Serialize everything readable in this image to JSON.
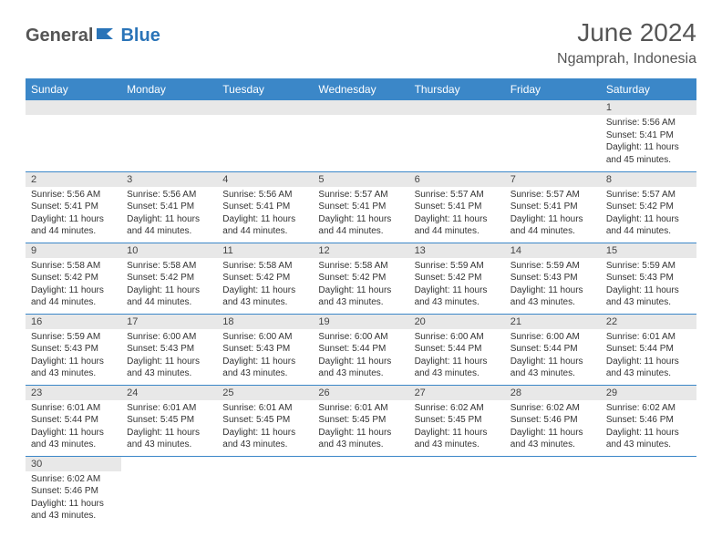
{
  "logo": {
    "part1": "General",
    "part2": "Blue"
  },
  "title": "June 2024",
  "location": "Ngamprah, Indonesia",
  "colors": {
    "header_bg": "#3b87c8",
    "header_text": "#ffffff",
    "daynum_bg": "#e8e8e8",
    "row_divider": "#3b87c8",
    "logo_gray": "#555555",
    "logo_blue": "#2a74b8",
    "text": "#333333"
  },
  "weekdays": [
    "Sunday",
    "Monday",
    "Tuesday",
    "Wednesday",
    "Thursday",
    "Friday",
    "Saturday"
  ],
  "weeks": [
    [
      null,
      null,
      null,
      null,
      null,
      null,
      {
        "n": "1",
        "sr": "Sunrise: 5:56 AM",
        "ss": "Sunset: 5:41 PM",
        "d1": "Daylight: 11 hours",
        "d2": "and 45 minutes."
      }
    ],
    [
      {
        "n": "2",
        "sr": "Sunrise: 5:56 AM",
        "ss": "Sunset: 5:41 PM",
        "d1": "Daylight: 11 hours",
        "d2": "and 44 minutes."
      },
      {
        "n": "3",
        "sr": "Sunrise: 5:56 AM",
        "ss": "Sunset: 5:41 PM",
        "d1": "Daylight: 11 hours",
        "d2": "and 44 minutes."
      },
      {
        "n": "4",
        "sr": "Sunrise: 5:56 AM",
        "ss": "Sunset: 5:41 PM",
        "d1": "Daylight: 11 hours",
        "d2": "and 44 minutes."
      },
      {
        "n": "5",
        "sr": "Sunrise: 5:57 AM",
        "ss": "Sunset: 5:41 PM",
        "d1": "Daylight: 11 hours",
        "d2": "and 44 minutes."
      },
      {
        "n": "6",
        "sr": "Sunrise: 5:57 AM",
        "ss": "Sunset: 5:41 PM",
        "d1": "Daylight: 11 hours",
        "d2": "and 44 minutes."
      },
      {
        "n": "7",
        "sr": "Sunrise: 5:57 AM",
        "ss": "Sunset: 5:41 PM",
        "d1": "Daylight: 11 hours",
        "d2": "and 44 minutes."
      },
      {
        "n": "8",
        "sr": "Sunrise: 5:57 AM",
        "ss": "Sunset: 5:42 PM",
        "d1": "Daylight: 11 hours",
        "d2": "and 44 minutes."
      }
    ],
    [
      {
        "n": "9",
        "sr": "Sunrise: 5:58 AM",
        "ss": "Sunset: 5:42 PM",
        "d1": "Daylight: 11 hours",
        "d2": "and 44 minutes."
      },
      {
        "n": "10",
        "sr": "Sunrise: 5:58 AM",
        "ss": "Sunset: 5:42 PM",
        "d1": "Daylight: 11 hours",
        "d2": "and 44 minutes."
      },
      {
        "n": "11",
        "sr": "Sunrise: 5:58 AM",
        "ss": "Sunset: 5:42 PM",
        "d1": "Daylight: 11 hours",
        "d2": "and 43 minutes."
      },
      {
        "n": "12",
        "sr": "Sunrise: 5:58 AM",
        "ss": "Sunset: 5:42 PM",
        "d1": "Daylight: 11 hours",
        "d2": "and 43 minutes."
      },
      {
        "n": "13",
        "sr": "Sunrise: 5:59 AM",
        "ss": "Sunset: 5:42 PM",
        "d1": "Daylight: 11 hours",
        "d2": "and 43 minutes."
      },
      {
        "n": "14",
        "sr": "Sunrise: 5:59 AM",
        "ss": "Sunset: 5:43 PM",
        "d1": "Daylight: 11 hours",
        "d2": "and 43 minutes."
      },
      {
        "n": "15",
        "sr": "Sunrise: 5:59 AM",
        "ss": "Sunset: 5:43 PM",
        "d1": "Daylight: 11 hours",
        "d2": "and 43 minutes."
      }
    ],
    [
      {
        "n": "16",
        "sr": "Sunrise: 5:59 AM",
        "ss": "Sunset: 5:43 PM",
        "d1": "Daylight: 11 hours",
        "d2": "and 43 minutes."
      },
      {
        "n": "17",
        "sr": "Sunrise: 6:00 AM",
        "ss": "Sunset: 5:43 PM",
        "d1": "Daylight: 11 hours",
        "d2": "and 43 minutes."
      },
      {
        "n": "18",
        "sr": "Sunrise: 6:00 AM",
        "ss": "Sunset: 5:43 PM",
        "d1": "Daylight: 11 hours",
        "d2": "and 43 minutes."
      },
      {
        "n": "19",
        "sr": "Sunrise: 6:00 AM",
        "ss": "Sunset: 5:44 PM",
        "d1": "Daylight: 11 hours",
        "d2": "and 43 minutes."
      },
      {
        "n": "20",
        "sr": "Sunrise: 6:00 AM",
        "ss": "Sunset: 5:44 PM",
        "d1": "Daylight: 11 hours",
        "d2": "and 43 minutes."
      },
      {
        "n": "21",
        "sr": "Sunrise: 6:00 AM",
        "ss": "Sunset: 5:44 PM",
        "d1": "Daylight: 11 hours",
        "d2": "and 43 minutes."
      },
      {
        "n": "22",
        "sr": "Sunrise: 6:01 AM",
        "ss": "Sunset: 5:44 PM",
        "d1": "Daylight: 11 hours",
        "d2": "and 43 minutes."
      }
    ],
    [
      {
        "n": "23",
        "sr": "Sunrise: 6:01 AM",
        "ss": "Sunset: 5:44 PM",
        "d1": "Daylight: 11 hours",
        "d2": "and 43 minutes."
      },
      {
        "n": "24",
        "sr": "Sunrise: 6:01 AM",
        "ss": "Sunset: 5:45 PM",
        "d1": "Daylight: 11 hours",
        "d2": "and 43 minutes."
      },
      {
        "n": "25",
        "sr": "Sunrise: 6:01 AM",
        "ss": "Sunset: 5:45 PM",
        "d1": "Daylight: 11 hours",
        "d2": "and 43 minutes."
      },
      {
        "n": "26",
        "sr": "Sunrise: 6:01 AM",
        "ss": "Sunset: 5:45 PM",
        "d1": "Daylight: 11 hours",
        "d2": "and 43 minutes."
      },
      {
        "n": "27",
        "sr": "Sunrise: 6:02 AM",
        "ss": "Sunset: 5:45 PM",
        "d1": "Daylight: 11 hours",
        "d2": "and 43 minutes."
      },
      {
        "n": "28",
        "sr": "Sunrise: 6:02 AM",
        "ss": "Sunset: 5:46 PM",
        "d1": "Daylight: 11 hours",
        "d2": "and 43 minutes."
      },
      {
        "n": "29",
        "sr": "Sunrise: 6:02 AM",
        "ss": "Sunset: 5:46 PM",
        "d1": "Daylight: 11 hours",
        "d2": "and 43 minutes."
      }
    ],
    [
      {
        "n": "30",
        "sr": "Sunrise: 6:02 AM",
        "ss": "Sunset: 5:46 PM",
        "d1": "Daylight: 11 hours",
        "d2": "and 43 minutes."
      },
      null,
      null,
      null,
      null,
      null,
      null
    ]
  ]
}
